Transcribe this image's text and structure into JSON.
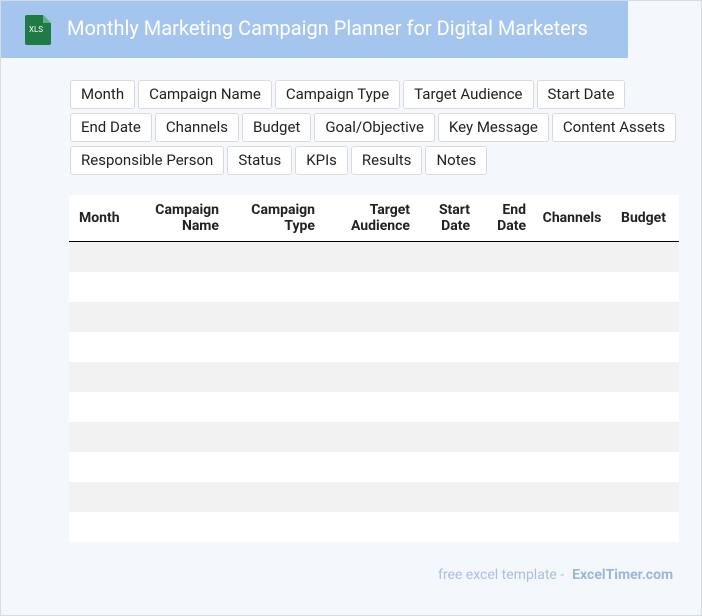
{
  "header": {
    "icon_label": "XLS",
    "title": "Monthly Marketing Campaign Planner for Digital Marketers"
  },
  "tags": [
    "Month",
    "Campaign Name",
    "Campaign Type",
    "Target Audience",
    "Start Date",
    "End Date",
    "Channels",
    "Budget",
    "Goal/Objective",
    "Key Message",
    "Content Assets",
    "Responsible Person",
    "Status",
    "KPIs",
    "Results",
    "Notes"
  ],
  "table": {
    "columns": [
      "Month",
      "Campaign Name",
      "Campaign Type",
      "Target Audience",
      "Start Date",
      "End Date",
      "Channels",
      "Budget"
    ]
  },
  "footer": {
    "prefix": "free excel template -",
    "site": "ExcelTimer.com"
  }
}
